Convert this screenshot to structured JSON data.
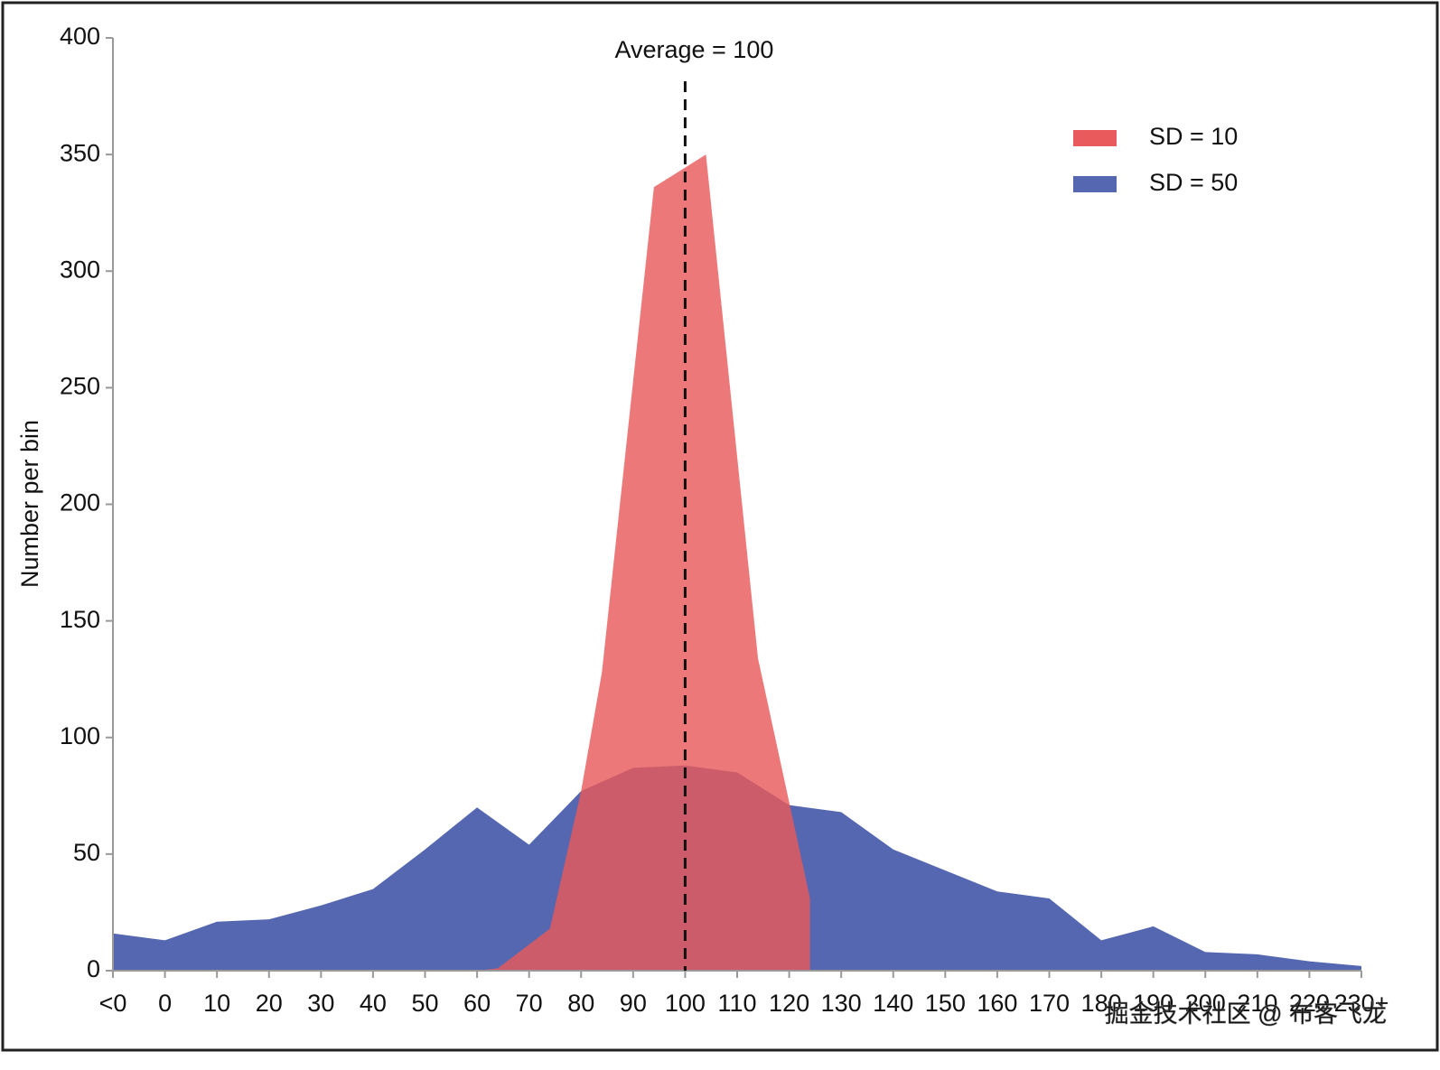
{
  "chart_data": {
    "type": "area",
    "y_label": "Number per bin",
    "xlim": [
      -10,
      230
    ],
    "ylim": [
      0,
      400
    ],
    "yticks": [
      0,
      50,
      100,
      150,
      200,
      250,
      300,
      350,
      400
    ],
    "xticks": [
      {
        "value": -10,
        "label": "<0"
      },
      0,
      10,
      20,
      30,
      40,
      50,
      60,
      70,
      80,
      90,
      100,
      110,
      120,
      130,
      140,
      150,
      160,
      170,
      180,
      190,
      200,
      210,
      220,
      {
        "value": 230,
        "label": "230+"
      }
    ],
    "legend": "upper right",
    "series": [
      {
        "name": "SD = 10",
        "color": "#e85a5c",
        "x": [
          60,
          64,
          74,
          80,
          84,
          94,
          104,
          114,
          124,
          124
        ],
        "values": [
          0,
          1,
          18,
          77,
          128,
          336,
          350,
          134,
          31,
          0
        ]
      },
      {
        "name": "SD = 50",
        "color": "#5467b0",
        "x": [
          -10,
          0,
          10,
          20,
          30,
          40,
          50,
          60,
          70,
          80,
          90,
          100,
          110,
          120,
          130,
          140,
          150,
          160,
          170,
          180,
          190,
          200,
          210,
          220,
          230
        ],
        "values": [
          16,
          13,
          21,
          22,
          28,
          35,
          52,
          70,
          54,
          77,
          87,
          88,
          85,
          71,
          68,
          52,
          43,
          34,
          31,
          13,
          19,
          8,
          7,
          4,
          2
        ]
      }
    ],
    "average_line": {
      "x": 100,
      "label": "Average = 100"
    },
    "watermark": "掘金技术社区 @ 布客飞龙"
  }
}
